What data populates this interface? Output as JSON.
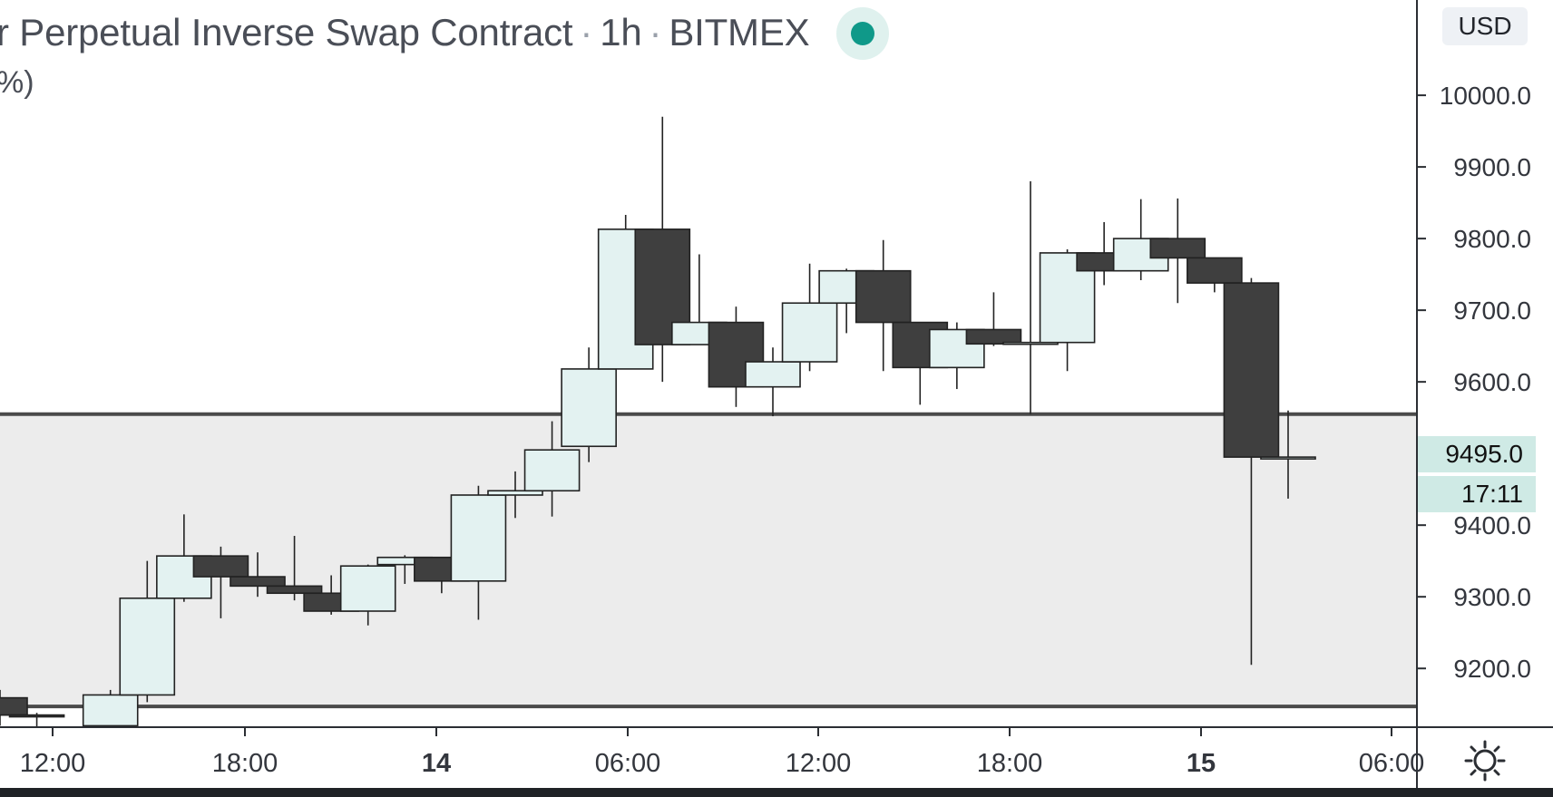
{
  "header": {
    "title": "r Perpetual Inverse Swap Contract",
    "interval": "1h",
    "exchange": "BITMEX",
    "separator": "·",
    "subline": "%)"
  },
  "currency_button": "USD",
  "live_dot_color": "#0f9989",
  "colors": {
    "up_fill": "#e3f2f1",
    "down_fill": "#3f3f3f",
    "zone_fill": "#ececec",
    "zone_line": "#4a4a4a",
    "price_tag": "#cfeae5"
  },
  "current_price": {
    "value": "9495.0",
    "countdown": "17:11"
  },
  "chart_data": {
    "type": "candlestick",
    "title": "",
    "x_tick_labels": [
      "12:00",
      "18:00",
      "14",
      "06:00",
      "12:00",
      "18:00",
      "15",
      "06:00"
    ],
    "y_tick_labels": [
      "10000.0",
      "9900.0",
      "9800.0",
      "9700.0",
      "9600.0",
      "9400.0",
      "9300.0",
      "9200.0"
    ],
    "y_ticks": [
      10000,
      9900,
      9800,
      9700,
      9600,
      9400,
      9300,
      9200
    ],
    "ylim": [
      9118,
      10133
    ],
    "time_range_hours": [
      11.6,
      30.85
    ],
    "zone": {
      "upper": 9555,
      "lower": 9147
    },
    "candles": [
      {
        "t": 10.7,
        "o": 9158,
        "h": 9160,
        "l": 9120,
        "c": 9135
      },
      {
        "t": 11,
        "o": 9159,
        "h": 9170,
        "l": 9120,
        "c": 9135
      },
      {
        "t": 12,
        "o": 9135,
        "h": 9138,
        "l": 9118,
        "c": 9134
      },
      {
        "t": 14,
        "o": 9120,
        "h": 9170,
        "l": 9118,
        "c": 9163
      },
      {
        "t": 15,
        "o": 9163,
        "h": 9350,
        "l": 9153,
        "c": 9298
      },
      {
        "t": 16,
        "o": 9298,
        "h": 9415,
        "l": 9293,
        "c": 9357
      },
      {
        "t": 17,
        "o": 9357,
        "h": 9370,
        "l": 9270,
        "c": 9328
      },
      {
        "t": 18,
        "o": 9328,
        "h": 9362,
        "l": 9300,
        "c": 9315
      },
      {
        "t": 19,
        "o": 9315,
        "h": 9385,
        "l": 9295,
        "c": 9305
      },
      {
        "t": 20,
        "o": 9305,
        "h": 9330,
        "l": 9275,
        "c": 9280
      },
      {
        "t": 21,
        "o": 9280,
        "h": 9345,
        "l": 9260,
        "c": 9343
      },
      {
        "t": 22,
        "o": 9345,
        "h": 9358,
        "l": 9318,
        "c": 9355
      },
      {
        "t": 23,
        "o": 9355,
        "h": 9355,
        "l": 9305,
        "c": 9322
      },
      {
        "t": 24,
        "o": 9322,
        "h": 9455,
        "l": 9268,
        "c": 9442
      },
      {
        "t": 25,
        "o": 9442,
        "h": 9475,
        "l": 9410,
        "c": 9448
      },
      {
        "t": 26,
        "o": 9448,
        "h": 9545,
        "l": 9412,
        "c": 9505
      },
      {
        "t": 27,
        "o": 9510,
        "h": 9648,
        "l": 9488,
        "c": 9618
      },
      {
        "t": 28,
        "o": 9618,
        "h": 9833,
        "l": 9618,
        "c": 9813
      },
      {
        "t": 29,
        "o": 9813,
        "h": 9970,
        "l": 9600,
        "c": 9652
      },
      {
        "t": 30,
        "o": 9652,
        "h": 9778,
        "l": 9652,
        "c": 9683
      },
      {
        "t": 31,
        "o": 9683,
        "h": 9705,
        "l": 9565,
        "c": 9593
      },
      {
        "t": 32,
        "o": 9593,
        "h": 9648,
        "l": 9552,
        "c": 9628
      },
      {
        "t": 33,
        "o": 9628,
        "h": 9765,
        "l": 9615,
        "c": 9710
      },
      {
        "t": 34,
        "o": 9710,
        "h": 9758,
        "l": 9668,
        "c": 9755
      },
      {
        "t": 35,
        "o": 9755,
        "h": 9798,
        "l": 9615,
        "c": 9683
      },
      {
        "t": 36,
        "o": 9683,
        "h": 9683,
        "l": 9568,
        "c": 9620
      },
      {
        "t": 37,
        "o": 9620,
        "h": 9683,
        "l": 9590,
        "c": 9673
      },
      {
        "t": 38,
        "o": 9673,
        "h": 9725,
        "l": 9650,
        "c": 9653
      },
      {
        "t": 39,
        "o": 9655,
        "h": 9880,
        "l": 9555,
        "c": 9655
      },
      {
        "t": 40,
        "o": 9655,
        "h": 9785,
        "l": 9615,
        "c": 9780
      },
      {
        "t": 41,
        "o": 9780,
        "h": 9823,
        "l": 9735,
        "c": 9755
      },
      {
        "t": 42,
        "o": 9755,
        "h": 9855,
        "l": 9742,
        "c": 9800
      },
      {
        "t": 43,
        "o": 9800,
        "h": 9856,
        "l": 9710,
        "c": 9773
      },
      {
        "t": 44,
        "o": 9773,
        "h": 9773,
        "l": 9725,
        "c": 9738
      },
      {
        "t": 45,
        "o": 9738,
        "h": 9745,
        "l": 9205,
        "c": 9495
      },
      {
        "t": 46,
        "o": 9495,
        "h": 9560,
        "l": 9437,
        "c": 9495
      }
    ]
  }
}
